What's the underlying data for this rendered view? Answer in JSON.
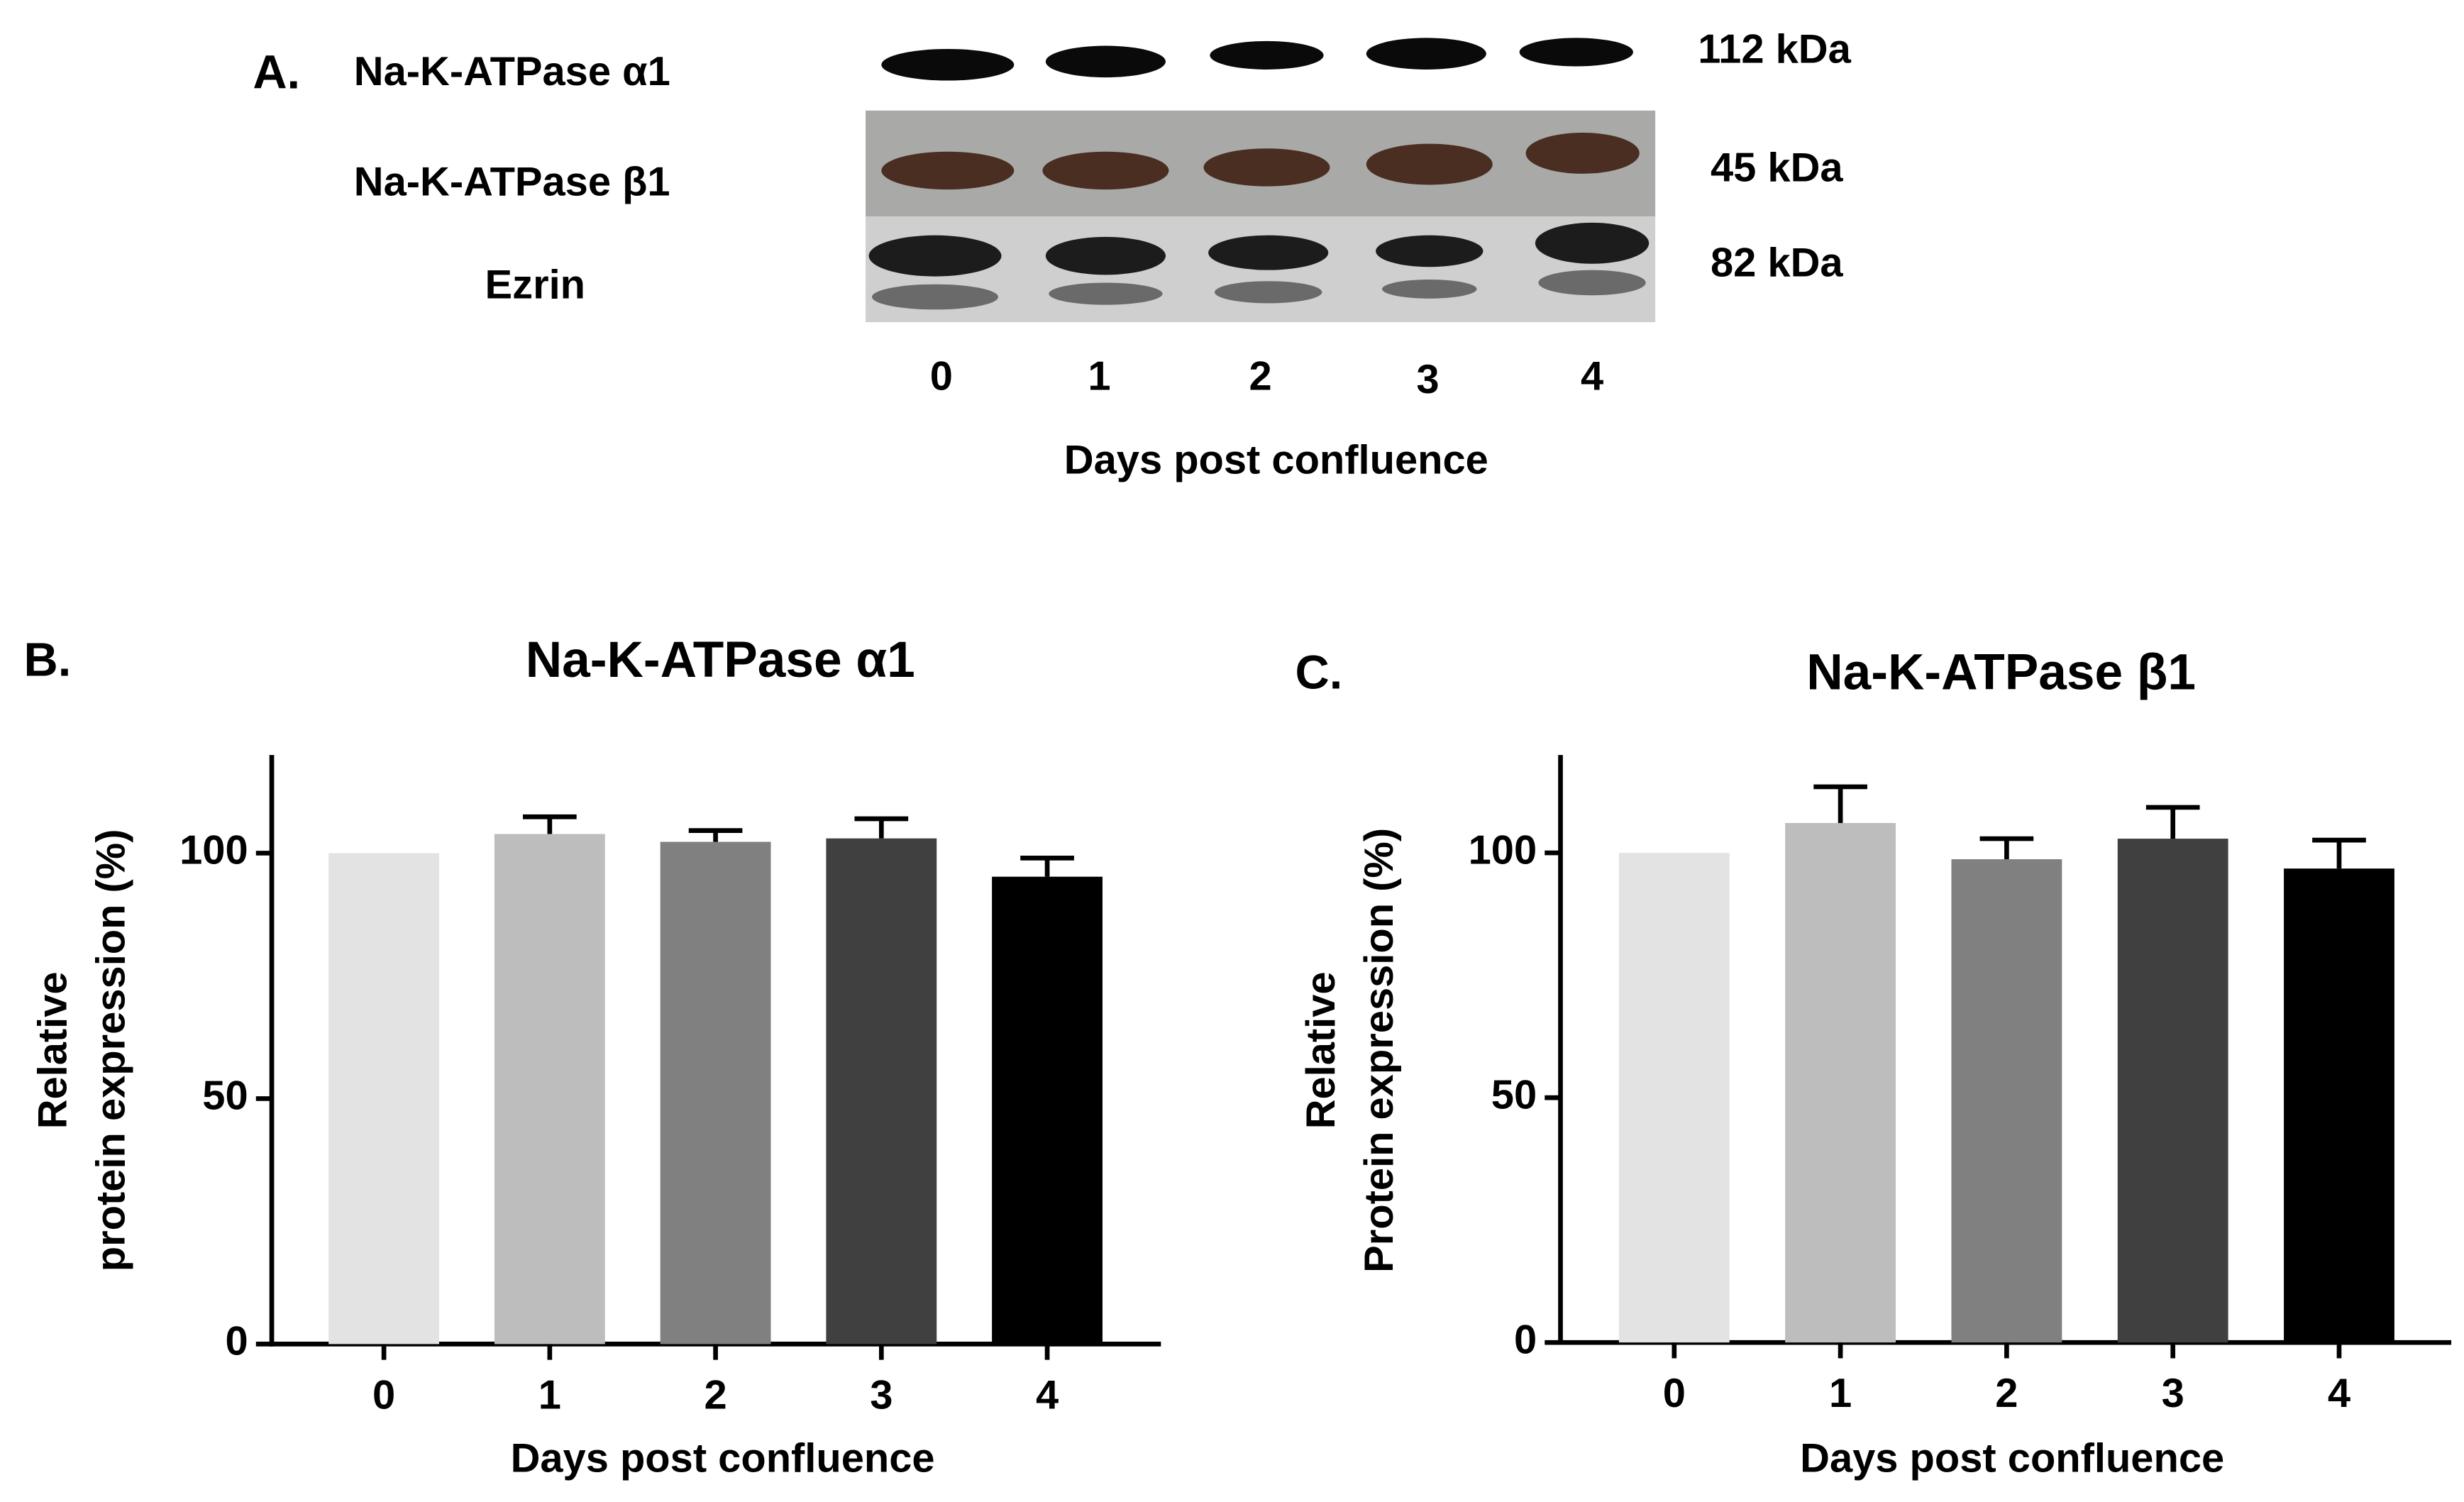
{
  "panel_a": {
    "label": "A.",
    "rows": [
      {
        "name": "Na-K-ATPase α1",
        "size": "112 kDa"
      },
      {
        "name": "Na-K-ATPase β1",
        "size": "45 kDa"
      },
      {
        "name": "Ezrin",
        "size": "82 kDa"
      }
    ],
    "lanes": [
      "0",
      "1",
      "2",
      "3",
      "4"
    ],
    "xlabel": "Days post confluence"
  },
  "chart_data": [
    {
      "type": "bar",
      "panel_label": "B.",
      "title": "Na-K-ATPase α1",
      "xlabel": "Days post confluence",
      "ylabel": [
        "Relative",
        "protein expression (%)"
      ],
      "categories": [
        "0",
        "1",
        "2",
        "3",
        "4"
      ],
      "values": [
        100,
        103.9,
        102.3,
        103,
        95.2
      ],
      "errors": [
        null,
        3.5,
        2.3,
        4,
        3.8
      ],
      "colors": [
        "#e3e3e3",
        "#bdbdbd",
        "#808080",
        "#404040",
        "#000000"
      ],
      "ylim": [
        0,
        120
      ],
      "yticks": [
        0,
        50,
        100
      ]
    },
    {
      "type": "bar",
      "panel_label": "C.",
      "title": "Na-K-ATPase β1",
      "xlabel": "Days post confluence",
      "ylabel": [
        "Relative",
        "Protein expression (%)"
      ],
      "categories": [
        "0",
        "1",
        "2",
        "3",
        "4"
      ],
      "values": [
        100,
        106.1,
        98.7,
        102.9,
        96.8
      ],
      "errors": [
        null,
        7.4,
        4.2,
        6.4,
        5.8
      ],
      "colors": [
        "#e3e3e3",
        "#bdbdbd",
        "#808080",
        "#404040",
        "#000000"
      ],
      "ylim": [
        0,
        120
      ],
      "yticks": [
        0,
        50,
        100
      ]
    }
  ]
}
